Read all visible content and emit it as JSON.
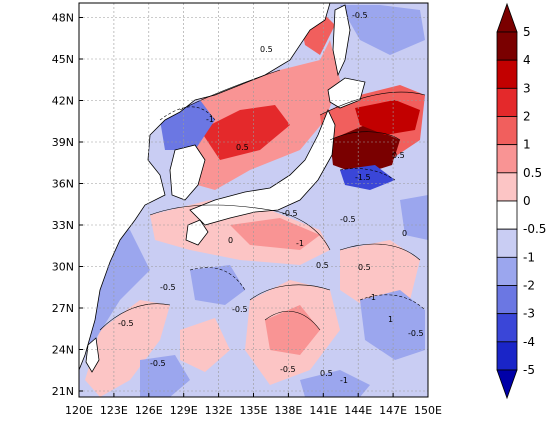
{
  "map": {
    "lon_ticks": [
      "120E",
      "123E",
      "126E",
      "129E",
      "132E",
      "135E",
      "138E",
      "141E",
      "144E",
      "147E",
      "150E"
    ],
    "lat_ticks": [
      "21N",
      "24N",
      "27N",
      "30N",
      "33N",
      "36N",
      "39N",
      "42N",
      "45N",
      "48N"
    ],
    "colors": {
      "ocean_base": "#c9cdf3",
      "land": "#ffffff",
      "grid": "#9a9a9a"
    },
    "contour_labels": [
      "-0.5",
      "-1",
      "0.5",
      "-1.5",
      "0.5",
      "0",
      "-0.5",
      "-0.5",
      "-1",
      "-0.5",
      "0.5",
      "0.5",
      "-1",
      "-0.5",
      "-0.5",
      "1",
      "0",
      "-0.5",
      "-0.5",
      "0.5",
      "-1",
      "-0.5",
      "0.5"
    ]
  },
  "colorbar": {
    "labels": [
      "5",
      "4",
      "3",
      "2",
      "1",
      "0.5",
      "0",
      "-0.5",
      "-1",
      "-2",
      "-3",
      "-4",
      "-5"
    ],
    "colors": [
      "#7a0000",
      "#c20000",
      "#e4292b",
      "#f15f5d",
      "#f99494",
      "#fcc5c5",
      "#ffffff",
      "#c9cdf3",
      "#9ba6ee",
      "#6b77e3",
      "#3a46d8",
      "#1a25c8",
      "#0000a8"
    ]
  }
}
